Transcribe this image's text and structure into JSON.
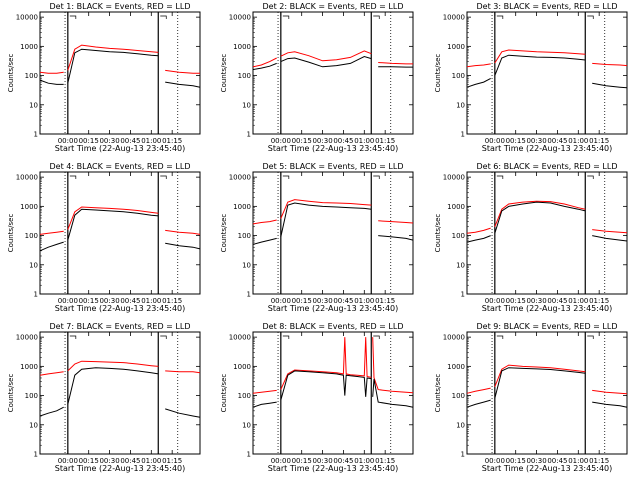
{
  "figure": {
    "x_axis_label": "Start Time (22-Aug-13 23:45:40)",
    "y_axis_label": "Counts/sec",
    "x_tick_labels": [
      "00:00",
      "00:15",
      "00:30",
      "00:45",
      "01:00",
      "01:15"
    ],
    "y_tick_labels": [
      "1",
      "10",
      "100",
      "1000",
      "10000"
    ],
    "series_colors": {
      "events": "#000000",
      "lld": "#ff0000"
    }
  },
  "chart_data": [
    {
      "type": "line",
      "title": "Det 1: BLACK = Events, RED = LLD",
      "xlabel": "Start Time (22-Aug-13 23:45:40)",
      "ylabel": "Counts/sec",
      "x_unit": "minutes after 23:45:40",
      "xlim": [
        -20,
        95
      ],
      "ylim": [
        1,
        15000
      ],
      "yscale": "log",
      "grid": false,
      "x": [
        -20,
        -14,
        -8,
        -3,
        0,
        5,
        10,
        20,
        30,
        40,
        50,
        60,
        65,
        70,
        80,
        90,
        95
      ],
      "series": [
        {
          "values": [
            70,
            55,
            50,
            50,
            55,
            600,
            800,
            720,
            650,
            620,
            560,
            500,
            480,
            60,
            50,
            45,
            40
          ]
        },
        {
          "values": [
            130,
            120,
            120,
            130,
            150,
            800,
            1100,
            950,
            850,
            800,
            720,
            650,
            620,
            150,
            130,
            120,
            120
          ]
        }
      ]
    },
    {
      "type": "line",
      "title": "Det 2: BLACK = Events, RED = LLD",
      "xlabel": "Start Time (22-Aug-13 23:45:40)",
      "ylabel": "Counts/sec",
      "x_unit": "minutes after 23:45:40",
      "xlim": [
        -20,
        95
      ],
      "ylim": [
        1,
        15000
      ],
      "yscale": "log",
      "grid": false,
      "x": [
        -20,
        -14,
        -8,
        -3,
        0,
        5,
        10,
        20,
        30,
        40,
        50,
        60,
        65,
        70,
        80,
        90,
        95
      ],
      "series": [
        {
          "values": [
            160,
            180,
            210,
            260,
            300,
            380,
            400,
            290,
            200,
            220,
            260,
            450,
            380,
            200,
            200,
            195,
            195
          ]
        },
        {
          "values": [
            200,
            230,
            300,
            400,
            460,
            600,
            650,
            480,
            320,
            350,
            420,
            700,
            560,
            280,
            260,
            250,
            250
          ]
        }
      ]
    },
    {
      "type": "line",
      "title": "Det 3: BLACK = Events, RED = LLD",
      "xlabel": "Start Time (22-Aug-13 23:45:40)",
      "ylabel": "Counts/sec",
      "x_unit": "minutes after 23:45:40",
      "xlim": [
        -20,
        95
      ],
      "ylim": [
        1,
        15000
      ],
      "yscale": "log",
      "grid": false,
      "x": [
        -20,
        -14,
        -8,
        -3,
        0,
        5,
        10,
        20,
        30,
        40,
        50,
        60,
        65,
        70,
        80,
        90,
        95
      ],
      "series": [
        {
          "values": [
            40,
            50,
            60,
            80,
            100,
            400,
            500,
            460,
            430,
            420,
            400,
            360,
            340,
            55,
            45,
            40,
            38
          ]
        },
        {
          "values": [
            200,
            220,
            230,
            250,
            270,
            650,
            750,
            700,
            650,
            630,
            600,
            560,
            540,
            260,
            240,
            230,
            220
          ]
        }
      ]
    },
    {
      "type": "line",
      "title": "Det 4: BLACK = Events, RED = LLD",
      "xlabel": "Start Time (22-Aug-13 23:45:40)",
      "ylabel": "Counts/sec",
      "x_unit": "minutes after 23:45:40",
      "xlim": [
        -20,
        95
      ],
      "ylim": [
        1,
        15000
      ],
      "yscale": "log",
      "grid": false,
      "x": [
        -20,
        -14,
        -8,
        -3,
        0,
        5,
        10,
        20,
        30,
        40,
        50,
        60,
        65,
        70,
        80,
        90,
        95
      ],
      "series": [
        {
          "values": [
            30,
            40,
            50,
            60,
            70,
            500,
            800,
            750,
            700,
            650,
            580,
            500,
            470,
            55,
            45,
            40,
            35
          ]
        },
        {
          "values": [
            110,
            120,
            130,
            140,
            160,
            650,
            950,
            900,
            850,
            800,
            720,
            620,
            580,
            150,
            130,
            120,
            110
          ]
        }
      ]
    },
    {
      "type": "line",
      "title": "Det 5: BLACK = Events, RED = LLD",
      "xlabel": "Start Time (22-Aug-13 23:45:40)",
      "ylabel": "Counts/sec",
      "x_unit": "minutes after 23:45:40",
      "xlim": [
        -20,
        95
      ],
      "ylim": [
        1,
        15000
      ],
      "yscale": "log",
      "grid": false,
      "x": [
        -20,
        -14,
        -8,
        -3,
        0,
        5,
        10,
        20,
        30,
        40,
        50,
        60,
        65,
        70,
        80,
        90,
        95
      ],
      "series": [
        {
          "values": [
            50,
            60,
            70,
            80,
            90,
            1100,
            1300,
            1100,
            1000,
            950,
            900,
            850,
            800,
            100,
            90,
            80,
            70
          ]
        },
        {
          "values": [
            250,
            280,
            300,
            340,
            380,
            1400,
            1700,
            1500,
            1350,
            1300,
            1250,
            1150,
            1100,
            320,
            300,
            280,
            270
          ]
        }
      ]
    },
    {
      "type": "line",
      "title": "Det 6: BLACK = Events, RED = LLD",
      "xlabel": "Start Time (22-Aug-13 23:45:40)",
      "ylabel": "Counts/sec",
      "x_unit": "minutes after 23:45:40",
      "xlim": [
        -20,
        95
      ],
      "ylim": [
        1,
        15000
      ],
      "yscale": "log",
      "grid": false,
      "x": [
        -20,
        -14,
        -8,
        -3,
        0,
        5,
        10,
        20,
        30,
        40,
        50,
        60,
        65,
        70,
        80,
        90,
        95
      ],
      "series": [
        {
          "values": [
            60,
            70,
            80,
            100,
            120,
            700,
            1000,
            1200,
            1400,
            1300,
            1000,
            800,
            700,
            100,
            80,
            70,
            65
          ]
        },
        {
          "values": [
            120,
            130,
            150,
            180,
            200,
            800,
            1200,
            1400,
            1500,
            1450,
            1200,
            900,
            800,
            160,
            140,
            130,
            125
          ]
        }
      ]
    },
    {
      "type": "line",
      "title": "Det 7: BLACK = Events, RED = LLD",
      "xlabel": "Start Time (22-Aug-13 23:45:40)",
      "ylabel": "Counts/sec",
      "x_unit": "minutes after 23:45:40",
      "xlim": [
        -20,
        95
      ],
      "ylim": [
        1,
        15000
      ],
      "yscale": "log",
      "grid": false,
      "x": [
        -20,
        -14,
        -8,
        -3,
        0,
        5,
        10,
        20,
        30,
        40,
        50,
        60,
        65,
        70,
        80,
        90,
        95
      ],
      "series": [
        {
          "values": [
            20,
            25,
            30,
            40,
            50,
            500,
            800,
            900,
            850,
            800,
            700,
            600,
            550,
            35,
            25,
            20,
            18
          ]
        },
        {
          "values": [
            500,
            550,
            600,
            650,
            700,
            1200,
            1500,
            1450,
            1400,
            1350,
            1200,
            1050,
            1000,
            700,
            650,
            650,
            600
          ]
        }
      ]
    },
    {
      "type": "line",
      "title": "Det 8: BLACK = Events, RED = LLD",
      "xlabel": "Start Time (22-Aug-13 23:45:40)",
      "ylabel": "Counts/sec",
      "x_unit": "minutes after 23:45:40",
      "xlim": [
        -20,
        95
      ],
      "ylim": [
        1,
        15000
      ],
      "yscale": "log",
      "grid": false,
      "x": [
        -20,
        -14,
        -8,
        -3,
        0,
        5,
        10,
        20,
        30,
        40,
        45,
        46,
        47,
        50,
        55,
        60,
        61,
        62,
        65,
        66,
        67,
        70,
        80,
        90,
        95
      ],
      "series": [
        {
          "values": [
            40,
            50,
            55,
            60,
            70,
            500,
            700,
            650,
            600,
            550,
            500,
            100,
            500,
            480,
            450,
            420,
            90,
            400,
            380,
            90,
            370,
            60,
            50,
            45,
            40
          ]
        },
        {
          "values": [
            120,
            130,
            140,
            150,
            160,
            550,
            750,
            700,
            650,
            600,
            550,
            10000,
            550,
            520,
            500,
            470,
            10000,
            450,
            420,
            10000,
            410,
            160,
            140,
            130,
            125
          ]
        }
      ]
    },
    {
      "type": "line",
      "title": "Det 9: BLACK = Events, RED = LLD",
      "xlabel": "Start Time (22-Aug-13 23:45:40)",
      "ylabel": "Counts/sec",
      "x_unit": "minutes after 23:45:40",
      "xlim": [
        -20,
        95
      ],
      "ylim": [
        1,
        15000
      ],
      "yscale": "log",
      "grid": false,
      "x": [
        -20,
        -14,
        -8,
        -3,
        0,
        5,
        10,
        20,
        30,
        40,
        50,
        60,
        65,
        70,
        80,
        90,
        95
      ],
      "series": [
        {
          "values": [
            40,
            50,
            60,
            70,
            80,
            700,
            900,
            850,
            820,
            780,
            700,
            620,
            580,
            60,
            50,
            45,
            40
          ]
        },
        {
          "values": [
            120,
            140,
            160,
            180,
            200,
            800,
            1100,
            1000,
            950,
            900,
            800,
            700,
            650,
            150,
            130,
            120,
            115
          ]
        }
      ]
    }
  ]
}
